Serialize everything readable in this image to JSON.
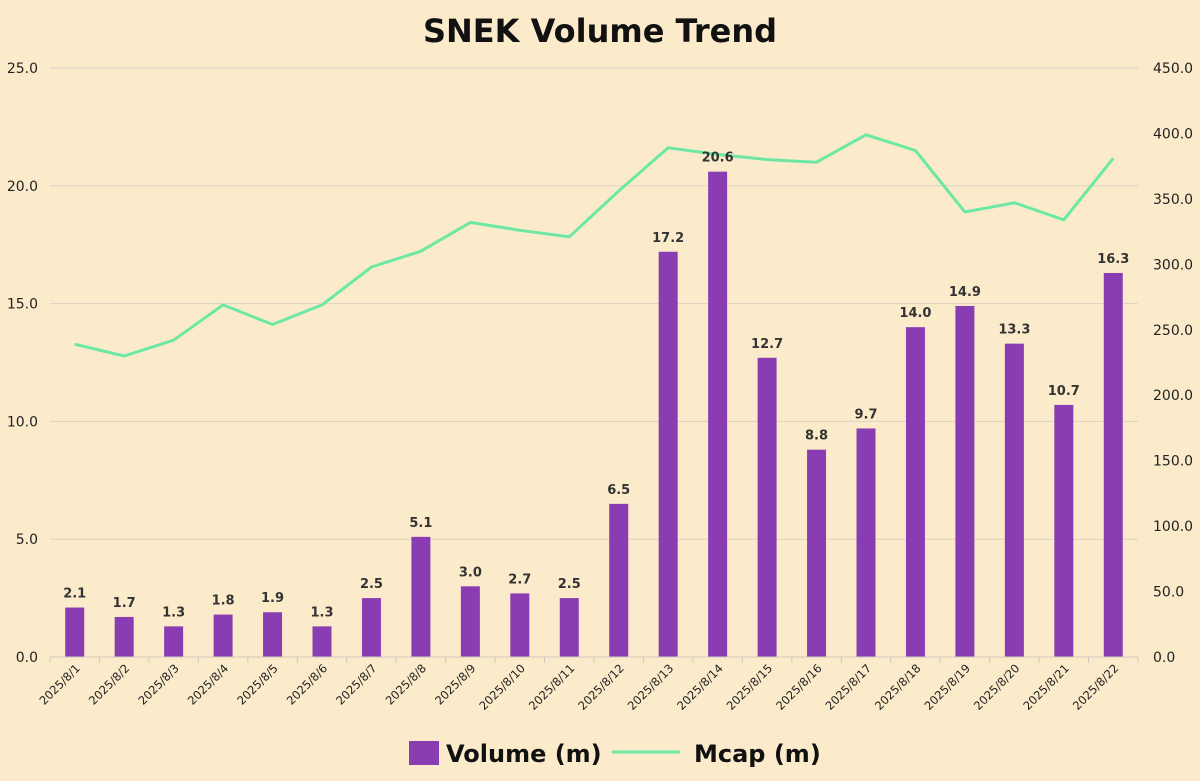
{
  "chart_data": {
    "type": "bar",
    "title": "SNEK Volume Trend",
    "categories": [
      "2025/8/1",
      "2025/8/2",
      "2025/8/3",
      "2025/8/4",
      "2025/8/5",
      "2025/8/6",
      "2025/8/7",
      "2025/8/8",
      "2025/8/9",
      "2025/8/10",
      "2025/8/11",
      "2025/8/12",
      "2025/8/13",
      "2025/8/14",
      "2025/8/15",
      "2025/8/16",
      "2025/8/17",
      "2025/8/18",
      "2025/8/19",
      "2025/8/20",
      "2025/8/21",
      "2025/8/22"
    ],
    "series": [
      {
        "name": "Volume (m)",
        "type": "bar",
        "axis": "left",
        "color": "#8a3db3",
        "values": [
          2.1,
          1.7,
          1.3,
          1.8,
          1.9,
          1.3,
          2.5,
          5.1,
          3.0,
          2.7,
          2.5,
          6.5,
          17.2,
          20.6,
          12.7,
          8.8,
          9.7,
          14.0,
          14.9,
          13.3,
          10.7,
          16.3
        ],
        "labels": [
          "2.1",
          "1.7",
          "1.3",
          "1.8",
          "1.9",
          "1.3",
          "2.5",
          "5.1",
          "3.0",
          "2.7",
          "2.5",
          "6.5",
          "17.2",
          "20.6",
          "12.7",
          "8.8",
          "9.7",
          "14.0",
          "14.9",
          "13.3",
          "10.7",
          "16.3"
        ]
      },
      {
        "name": "Mcap (m)",
        "type": "line",
        "axis": "right",
        "color": "#6de8a4",
        "values": [
          239,
          230,
          242,
          269,
          254,
          269,
          298,
          310,
          332,
          326,
          321,
          356,
          389,
          384,
          380,
          378,
          399,
          387,
          340,
          347,
          334,
          381
        ]
      }
    ],
    "ylim_left": [
      0,
      25
    ],
    "yticks_left": [
      "0.0",
      "5.0",
      "10.0",
      "15.0",
      "20.0",
      "25.0"
    ],
    "ylim_right": [
      0,
      450
    ],
    "yticks_right": [
      "0.0",
      "50.0",
      "100.0",
      "150.0",
      "200.0",
      "250.0",
      "300.0",
      "350.0",
      "400.0",
      "450.0"
    ],
    "grid": true,
    "legend_position": "bottom"
  }
}
